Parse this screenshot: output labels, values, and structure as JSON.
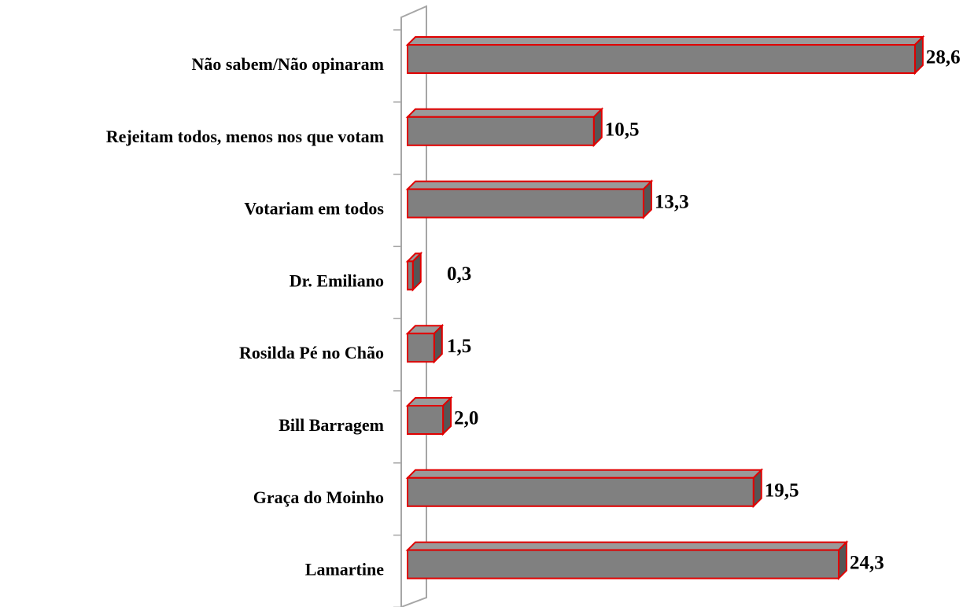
{
  "chart_data": {
    "type": "bar3d_horizontal",
    "categories": [
      "Não sabem/Não opinaram",
      "Rejeitam todos, menos nos que votam",
      "Votariam em todos",
      "Dr. Emiliano",
      "Rosilda Pé no Chão",
      "Bill Barragem",
      "Graça do Moinho",
      "Lamartine"
    ],
    "values": [
      28.6,
      10.5,
      13.3,
      0.3,
      1.5,
      2.0,
      19.5,
      24.3
    ],
    "value_labels": [
      "28,6",
      "10,5",
      "13,3",
      "0,3",
      "1,5",
      "2,0",
      "19,5",
      "24,3"
    ],
    "color": "#808080",
    "edge_color": "#e00000"
  }
}
